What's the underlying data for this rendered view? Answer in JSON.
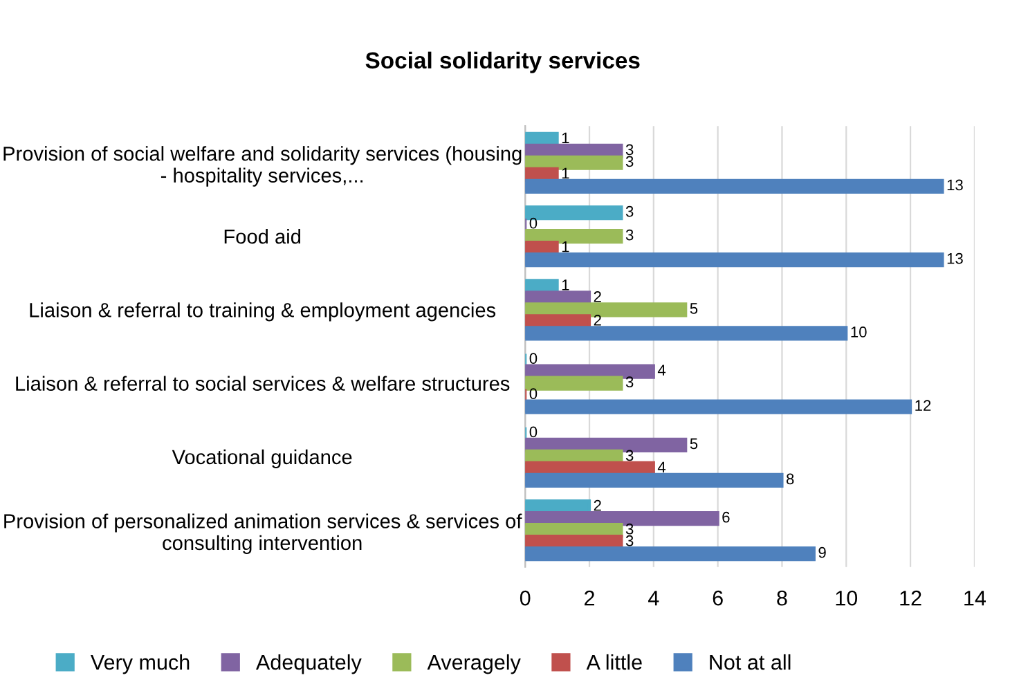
{
  "chart_data": {
    "type": "bar",
    "orientation": "horizontal",
    "title": "Social solidarity services",
    "categories": [
      "Provision of social welfare and solidarity services (housing - hospitality services,...",
      "Food aid",
      "Liaison & referral to training & employment agencies",
      "Liaison & referral to social services & welfare structures",
      "Vocational guidance",
      "Provision of personalized animation services & services of consulting intervention"
    ],
    "series": [
      {
        "name": "Very much",
        "color": "#4bacc6",
        "values": [
          1,
          3,
          1,
          0,
          0,
          2
        ]
      },
      {
        "name": "Adequately",
        "color": "#8064a2",
        "values": [
          3,
          0,
          2,
          4,
          5,
          6
        ]
      },
      {
        "name": "Averagely",
        "color": "#9bbb59",
        "values": [
          3,
          3,
          5,
          3,
          3,
          3
        ]
      },
      {
        "name": "A little",
        "color": "#c0504d",
        "values": [
          1,
          1,
          2,
          0,
          4,
          3
        ]
      },
      {
        "name": "Not at all",
        "color": "#4f81bd",
        "values": [
          13,
          13,
          10,
          12,
          8,
          9
        ]
      }
    ],
    "xlim": [
      0,
      14
    ],
    "xticks": [
      0,
      2,
      4,
      6,
      8,
      10,
      12,
      14
    ],
    "grid": "x",
    "legend": "bottom",
    "data_labels": true
  }
}
